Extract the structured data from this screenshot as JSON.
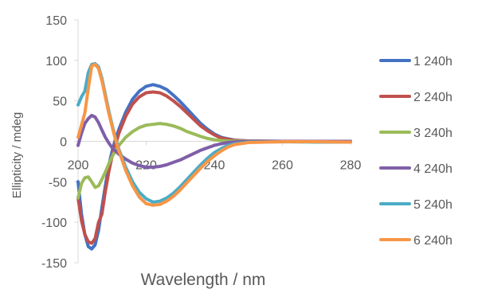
{
  "chart_data": {
    "type": "line",
    "title": "",
    "xlabel": "Wavelength / nm",
    "ylabel": "Ellipticity / mdeg",
    "xlim": [
      200,
      280
    ],
    "ylim": [
      -150,
      150
    ],
    "x_ticks": [
      200,
      220,
      240,
      260,
      280
    ],
    "y_ticks": [
      150,
      100,
      50,
      0,
      -50,
      -100,
      -150
    ],
    "grid": false,
    "legend": "right",
    "series": [
      {
        "name": "1 240h",
        "color": "#4472C4",
        "points": [
          [
            200,
            -50
          ],
          [
            201,
            -90
          ],
          [
            202,
            -115
          ],
          [
            203,
            -130
          ],
          [
            204,
            -133
          ],
          [
            205,
            -128
          ],
          [
            206,
            -110
          ],
          [
            207,
            -82
          ],
          [
            208,
            -55
          ],
          [
            209,
            -30
          ],
          [
            210,
            -12
          ],
          [
            211,
            3
          ],
          [
            212,
            15
          ],
          [
            214,
            36
          ],
          [
            216,
            52
          ],
          [
            218,
            62
          ],
          [
            220,
            68
          ],
          [
            222,
            70
          ],
          [
            224,
            68
          ],
          [
            226,
            64
          ],
          [
            228,
            57
          ],
          [
            230,
            49
          ],
          [
            232,
            40
          ],
          [
            234,
            31
          ],
          [
            236,
            22
          ],
          [
            238,
            15
          ],
          [
            240,
            9
          ],
          [
            242,
            5
          ],
          [
            244,
            3
          ],
          [
            246,
            1.5
          ],
          [
            250,
            0.5
          ],
          [
            260,
            0
          ],
          [
            270,
            0
          ],
          [
            280,
            0
          ]
        ]
      },
      {
        "name": "2 240h",
        "color": "#C0504D",
        "points": [
          [
            200,
            -70
          ],
          [
            201,
            -98
          ],
          [
            202,
            -115
          ],
          [
            203,
            -124
          ],
          [
            204,
            -126
          ],
          [
            205,
            -120
          ],
          [
            206,
            -100
          ],
          [
            207,
            -90
          ],
          [
            208,
            -62
          ],
          [
            209,
            -38
          ],
          [
            210,
            -18
          ],
          [
            211,
            -4
          ],
          [
            212,
            10
          ],
          [
            214,
            31
          ],
          [
            216,
            46
          ],
          [
            218,
            55
          ],
          [
            220,
            60
          ],
          [
            222,
            61
          ],
          [
            224,
            60
          ],
          [
            226,
            56
          ],
          [
            228,
            50
          ],
          [
            230,
            43
          ],
          [
            232,
            35
          ],
          [
            234,
            27
          ],
          [
            236,
            19
          ],
          [
            238,
            13
          ],
          [
            240,
            8
          ],
          [
            242,
            4
          ],
          [
            244,
            2.5
          ],
          [
            246,
            1.2
          ],
          [
            250,
            0.4
          ],
          [
            260,
            0
          ],
          [
            270,
            0
          ],
          [
            280,
            0
          ]
        ]
      },
      {
        "name": "3 240h",
        "color": "#9BBB59",
        "points": [
          [
            200,
            -70
          ],
          [
            201,
            -52
          ],
          [
            202,
            -45
          ],
          [
            203,
            -44
          ],
          [
            204,
            -50
          ],
          [
            205,
            -57
          ],
          [
            206,
            -55
          ],
          [
            207,
            -47
          ],
          [
            208,
            -38
          ],
          [
            209,
            -28
          ],
          [
            210,
            -19
          ],
          [
            211,
            -11
          ],
          [
            212,
            -5
          ],
          [
            214,
            5
          ],
          [
            216,
            12
          ],
          [
            218,
            17
          ],
          [
            220,
            20
          ],
          [
            222,
            21
          ],
          [
            224,
            22
          ],
          [
            226,
            21
          ],
          [
            228,
            19
          ],
          [
            230,
            16
          ],
          [
            232,
            12
          ],
          [
            234,
            9
          ],
          [
            236,
            6
          ],
          [
            238,
            3.5
          ],
          [
            240,
            2
          ],
          [
            242,
            1
          ],
          [
            244,
            0.5
          ],
          [
            250,
            0
          ],
          [
            260,
            0
          ],
          [
            270,
            0
          ],
          [
            280,
            0
          ]
        ]
      },
      {
        "name": "4 240h",
        "color": "#7F5FA8",
        "points": [
          [
            200,
            -5
          ],
          [
            201,
            10
          ],
          [
            202,
            22
          ],
          [
            203,
            28
          ],
          [
            204,
            32
          ],
          [
            205,
            30
          ],
          [
            206,
            23
          ],
          [
            207,
            14
          ],
          [
            208,
            5
          ],
          [
            209,
            -2
          ],
          [
            210,
            -8
          ],
          [
            211,
            -12
          ],
          [
            212,
            -16
          ],
          [
            214,
            -22
          ],
          [
            216,
            -27
          ],
          [
            218,
            -30
          ],
          [
            220,
            -32
          ],
          [
            222,
            -32
          ],
          [
            224,
            -31
          ],
          [
            226,
            -29
          ],
          [
            228,
            -26
          ],
          [
            230,
            -23
          ],
          [
            232,
            -19
          ],
          [
            234,
            -15
          ],
          [
            236,
            -11
          ],
          [
            238,
            -8
          ],
          [
            240,
            -5
          ],
          [
            242,
            -3
          ],
          [
            244,
            -1.5
          ],
          [
            246,
            -0.8
          ],
          [
            250,
            -0.3
          ],
          [
            260,
            0
          ],
          [
            270,
            0
          ],
          [
            280,
            0
          ]
        ]
      },
      {
        "name": "5 240h",
        "color": "#4BACC6",
        "points": [
          [
            200,
            45
          ],
          [
            201,
            55
          ],
          [
            202,
            62
          ],
          [
            203,
            85
          ],
          [
            204,
            95
          ],
          [
            205,
            96
          ],
          [
            206,
            92
          ],
          [
            207,
            78
          ],
          [
            208,
            58
          ],
          [
            209,
            38
          ],
          [
            210,
            20
          ],
          [
            211,
            4
          ],
          [
            212,
            -10
          ],
          [
            214,
            -32
          ],
          [
            216,
            -50
          ],
          [
            218,
            -63
          ],
          [
            220,
            -71
          ],
          [
            222,
            -75
          ],
          [
            224,
            -74
          ],
          [
            226,
            -70
          ],
          [
            228,
            -64
          ],
          [
            230,
            -56
          ],
          [
            232,
            -47
          ],
          [
            234,
            -38
          ],
          [
            236,
            -29
          ],
          [
            238,
            -21
          ],
          [
            240,
            -14
          ],
          [
            242,
            -9
          ],
          [
            244,
            -5
          ],
          [
            246,
            -3
          ],
          [
            250,
            -1
          ],
          [
            260,
            -0.5
          ],
          [
            270,
            -1
          ],
          [
            280,
            -1
          ]
        ]
      },
      {
        "name": "6 240h",
        "color": "#F79646",
        "points": [
          [
            200,
            5
          ],
          [
            201,
            20
          ],
          [
            202,
            35
          ],
          [
            203,
            65
          ],
          [
            204,
            93
          ],
          [
            205,
            95
          ],
          [
            206,
            90
          ],
          [
            207,
            75
          ],
          [
            208,
            55
          ],
          [
            209,
            35
          ],
          [
            210,
            18
          ],
          [
            211,
            2
          ],
          [
            212,
            -12
          ],
          [
            214,
            -36
          ],
          [
            216,
            -55
          ],
          [
            218,
            -69
          ],
          [
            220,
            -77
          ],
          [
            222,
            -79
          ],
          [
            224,
            -78
          ],
          [
            226,
            -74
          ],
          [
            228,
            -68
          ],
          [
            230,
            -60
          ],
          [
            232,
            -51
          ],
          [
            234,
            -42
          ],
          [
            236,
            -33
          ],
          [
            238,
            -25
          ],
          [
            240,
            -18
          ],
          [
            242,
            -12
          ],
          [
            244,
            -7
          ],
          [
            246,
            -4
          ],
          [
            250,
            -1.5
          ],
          [
            260,
            -0.5
          ],
          [
            270,
            -0.5
          ],
          [
            280,
            -1
          ]
        ]
      }
    ]
  }
}
